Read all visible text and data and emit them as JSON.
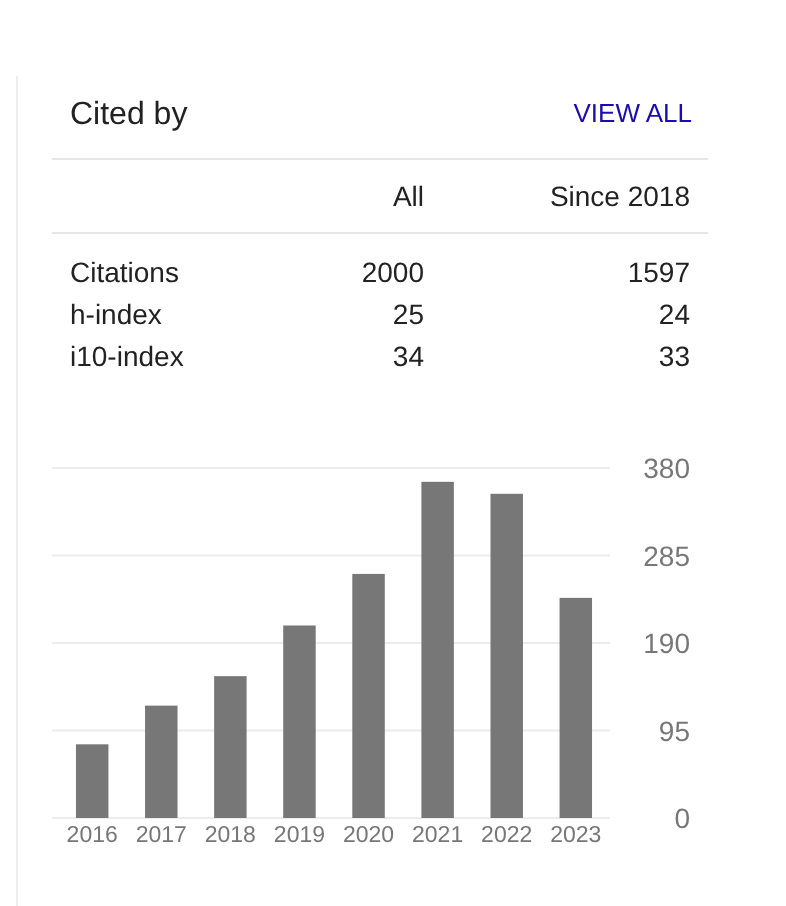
{
  "chart_data": [
    {
      "type": "other",
      "title": "Cited by",
      "annotations": [
        "VIEW ALL"
      ],
      "categories": [
        "Citations",
        "h-index",
        "i10-index"
      ],
      "series": [
        {
          "name": "All",
          "values": [
            2000,
            25,
            34
          ]
        },
        {
          "name": "Since 2018",
          "values": [
            1597,
            24,
            33
          ]
        }
      ],
      "data_labels": true
    },
    {
      "type": "bar",
      "categories": [
        "2016",
        "2017",
        "2018",
        "2019",
        "2020",
        "2021",
        "2022",
        "2023"
      ],
      "values": [
        80,
        122,
        154,
        209,
        265,
        365,
        352,
        239
      ],
      "color": "#777777",
      "ylim": [
        0,
        380
      ],
      "yticks": [
        0,
        95,
        190,
        285,
        380
      ],
      "grid": "y"
    }
  ]
}
